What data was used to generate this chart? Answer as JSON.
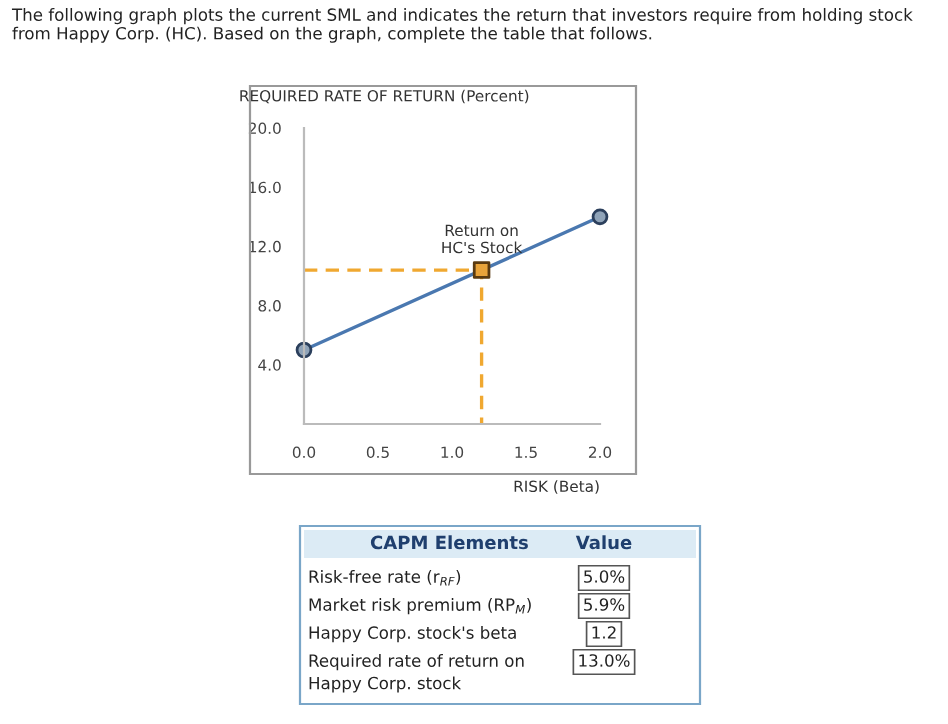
{
  "chart_data": {
    "type": "line",
    "ylabel": "REQUIRED RATE OF RETURN (Percent)",
    "xlabel": "RISK (Beta)",
    "series": [
      {
        "color": "#4a78b0",
        "x": [
          0,
          2.0
        ],
        "values": [
          5.0,
          14.0
        ],
        "marker": "circle",
        "line_style": "solid"
      },
      {
        "color": "#f0a830",
        "x": [
          0,
          1.2,
          1.2
        ],
        "values": [
          10.4,
          10.4,
          0
        ],
        "marker": "none",
        "line_style": "dashed"
      },
      {
        "type": "scatter",
        "color": "#e8a33a",
        "x": [
          1.2
        ],
        "values": [
          10.4
        ],
        "marker": "square"
      }
    ],
    "xlim": [
      0,
      2.0
    ],
    "ylim": [
      0,
      20.0
    ],
    "xticks": [
      {
        "value": 0,
        "label": "0.0"
      },
      0.5,
      {
        "value": 1,
        "label": "1.0"
      },
      1.5,
      {
        "value": 2,
        "label": "2.0"
      }
    ],
    "yticks": [
      {
        "value": 0,
        "label": null
      },
      {
        "value": 4,
        "label": "4.0"
      },
      {
        "value": 8,
        "label": "8.0"
      },
      {
        "value": 12,
        "label": "12.0"
      },
      {
        "value": 16,
        "label": "16.0"
      },
      {
        "value": 20,
        "label": "20.0"
      }
    ],
    "grid": false,
    "annotations": [
      "The following graph plots the current SML and indicates the return that investors require from holding stock from Happy Corp. (HC). Based on the graph, complete the table that follows.",
      {
        "text": "Return on\nHC's Stock",
        "x": 1.2,
        "y": 10.4
      },
      "CAPM Elements",
      "Value",
      "Risk-free rate (r$_{RF}$)",
      "5.0%",
      "Market risk premium (RP$_{M}$)",
      "5.9%",
      "Happy Corp. stock's beta",
      "1.2",
      "Required rate of return on\nHappy Corp. stock",
      "13.0%"
    ]
  }
}
